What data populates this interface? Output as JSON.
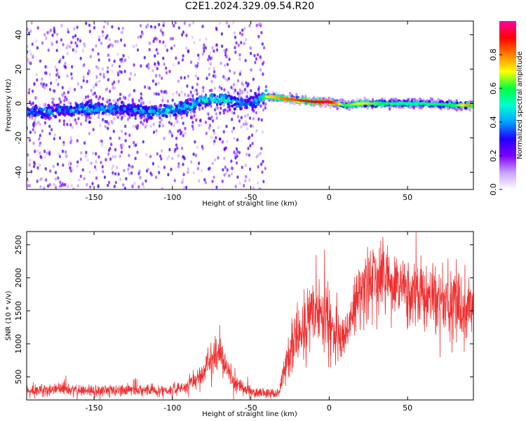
{
  "title": "C2E1.2024.329.09.54.R20",
  "chart_data": [
    {
      "type": "heatmap",
      "xlabel": "Height of straight line (km)",
      "ylabel": "Frequency (Hz)",
      "xlim": [
        -193,
        92
      ],
      "ylim": [
        -50,
        48
      ],
      "x_ticks": [
        -150,
        -100,
        -50,
        0,
        50
      ],
      "y_ticks": [
        -40,
        -20,
        0,
        20,
        40
      ],
      "grid": false,
      "colorbar": {
        "label": "Normalized spectral amplitude",
        "range": [
          0.0,
          1.0
        ],
        "ticks": [
          0.0,
          0.2,
          0.4,
          0.6,
          0.8
        ],
        "tick_labels": [
          "0.0",
          "0.2",
          "0.4",
          "0.6",
          "0.8"
        ],
        "colormap": [
          "#ffffff",
          "#c9a2ff",
          "#7f00ff",
          "#2000ff",
          "#00a0ff",
          "#00ffd0",
          "#00ff40",
          "#ffff00",
          "#ff8000",
          "#ff0000",
          "#ff00a0"
        ]
      },
      "ridge": {
        "x": [
          -190,
          -170,
          -150,
          -130,
          -110,
          -90,
          -80,
          -70,
          -60,
          -50,
          -40,
          -30,
          -20,
          -10,
          0,
          10,
          20,
          40,
          60,
          80,
          90
        ],
        "freq": [
          -5,
          -4,
          -3,
          -3,
          -5,
          -2,
          2,
          3,
          1,
          0,
          4,
          3,
          2,
          1,
          1,
          -1,
          0,
          0,
          0,
          -1,
          -1
        ],
        "amplitude": [
          0.45,
          0.45,
          0.5,
          0.4,
          0.5,
          0.5,
          0.55,
          0.55,
          0.5,
          0.4,
          0.7,
          0.8,
          0.85,
          0.9,
          0.95,
          0.6,
          0.7,
          0.55,
          0.55,
          0.6,
          0.8
        ]
      }
    },
    {
      "type": "line",
      "xlabel": "Height of straight line (km)",
      "ylabel": "SNR (10 * v/v)",
      "xlim": [
        -193,
        92
      ],
      "ylim": [
        150,
        2700
      ],
      "x_ticks": [
        -150,
        -100,
        -50,
        0,
        50
      ],
      "y_ticks": [
        500,
        1000,
        1500,
        2000,
        2500
      ],
      "grid": false,
      "color": "#f03030",
      "series": [
        {
          "x": [
            -193,
            -180,
            -170,
            -160,
            -150,
            -140,
            -130,
            -120,
            -110,
            -100,
            -95,
            -90,
            -85,
            -80,
            -75,
            -72,
            -70,
            -68,
            -65,
            -60,
            -55,
            -50,
            -45,
            -40,
            -35,
            -32,
            -30,
            -28,
            -25,
            -20,
            -15,
            -10,
            -5,
            0,
            5,
            10,
            15,
            20,
            25,
            30,
            35,
            40,
            50,
            60,
            70,
            80,
            90
          ],
          "values": [
            280,
            300,
            310,
            300,
            290,
            290,
            300,
            300,
            290,
            300,
            330,
            380,
            460,
            600,
            800,
            900,
            880,
            750,
            600,
            420,
            320,
            280,
            260,
            250,
            250,
            250,
            500,
            700,
            950,
            1100,
            1250,
            1400,
            1500,
            1400,
            1150,
            1000,
            1500,
            1800,
            1950,
            2050,
            1950,
            1850,
            1800,
            1700,
            1650,
            1600,
            1550
          ]
        }
      ]
    }
  ]
}
